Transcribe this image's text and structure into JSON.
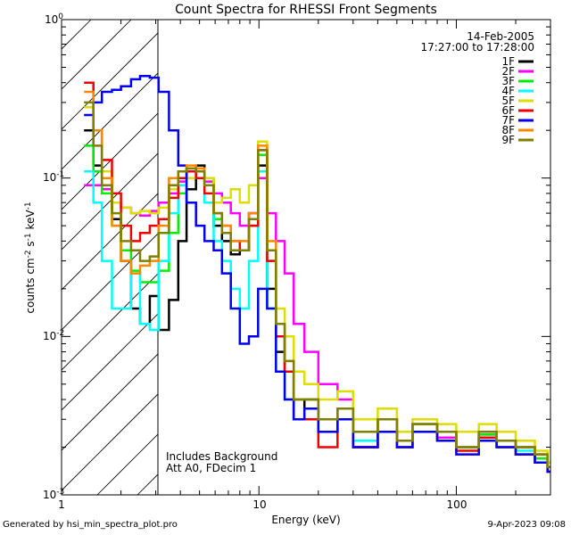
{
  "chart_data": {
    "type": "line",
    "title": "Count Spectra for RHESSI Front Segments",
    "xlabel": "Energy (keV)",
    "ylabel": "counts cm-2 s-1 keV-1",
    "xscale": "log",
    "yscale": "log",
    "xlim": [
      1,
      300
    ],
    "ylim": [
      0.001,
      1
    ],
    "x_tick_labels": [
      "1",
      "10",
      "100"
    ],
    "y_tick_labels": [
      "10-3",
      "10-2",
      "10-1",
      "100"
    ],
    "shaded_region_below_keV": 3,
    "info": {
      "date": "14-Feb-2005",
      "time_range": "17:27:00 to 17:28:00"
    },
    "annotations": [
      "Includes Background",
      "Att A0, FDecim 1"
    ],
    "footer_left": "Generated by hsi_min_spectra_plot.pro",
    "footer_right": "9-Apr-2023 09:08",
    "series": [
      {
        "name": "1F",
        "color": "#000000",
        "x": [
          1.3,
          1.45,
          1.6,
          1.8,
          2.0,
          2.25,
          2.5,
          2.8,
          3.1,
          3.5,
          3.9,
          4.3,
          4.8,
          5.3,
          5.9,
          6.5,
          7.2,
          8.0,
          8.9,
          9.9,
          11,
          12.2,
          13.5,
          15,
          17,
          20,
          25,
          30,
          40,
          50,
          60,
          80,
          100,
          130,
          160,
          200,
          250,
          290
        ],
        "values": [
          0.2,
          0.12,
          0.1,
          0.055,
          0.03,
          0.015,
          0.012,
          0.018,
          0.011,
          0.017,
          0.04,
          0.085,
          0.12,
          0.09,
          0.05,
          0.04,
          0.033,
          0.035,
          0.06,
          0.12,
          0.02,
          0.008,
          0.006,
          0.003,
          0.004,
          0.0025,
          0.0035,
          0.002,
          0.003,
          0.0022,
          0.0028,
          0.0025,
          0.002,
          0.0025,
          0.0022,
          0.002,
          0.0018,
          0.0015
        ]
      },
      {
        "name": "2F",
        "color": "#ff00ff",
        "x": [
          1.3,
          1.45,
          1.6,
          1.8,
          2.0,
          2.25,
          2.5,
          2.8,
          3.1,
          3.5,
          3.9,
          4.3,
          4.8,
          5.3,
          5.9,
          6.5,
          7.2,
          8.0,
          8.9,
          9.9,
          11,
          12.2,
          13.5,
          15,
          17,
          20,
          25,
          30,
          40,
          50,
          60,
          80,
          100,
          130,
          160,
          200,
          250,
          290
        ],
        "values": [
          0.09,
          0.09,
          0.085,
          0.07,
          0.065,
          0.06,
          0.058,
          0.062,
          0.07,
          0.08,
          0.095,
          0.1,
          0.11,
          0.095,
          0.08,
          0.07,
          0.06,
          0.05,
          0.06,
          0.1,
          0.06,
          0.04,
          0.025,
          0.012,
          0.008,
          0.005,
          0.004,
          0.0025,
          0.003,
          0.002,
          0.0025,
          0.0023,
          0.002,
          0.0024,
          0.0022,
          0.002,
          0.0017,
          0.0015
        ]
      },
      {
        "name": "3F",
        "color": "#00ee00",
        "x": [
          1.3,
          1.45,
          1.6,
          1.8,
          2.0,
          2.25,
          2.5,
          2.8,
          3.1,
          3.5,
          3.9,
          4.3,
          4.8,
          5.3,
          5.9,
          6.5,
          7.2,
          8.0,
          8.9,
          9.9,
          11,
          12.2,
          13.5,
          15,
          17,
          20,
          25,
          30,
          40,
          50,
          60,
          80,
          100,
          130,
          160,
          200,
          250,
          290
        ],
        "values": [
          0.16,
          0.11,
          0.08,
          0.05,
          0.035,
          0.026,
          0.022,
          0.022,
          0.026,
          0.045,
          0.08,
          0.1,
          0.11,
          0.1,
          0.055,
          0.045,
          0.035,
          0.035,
          0.05,
          0.14,
          0.03,
          0.01,
          0.006,
          0.004,
          0.004,
          0.003,
          0.0035,
          0.0025,
          0.003,
          0.0022,
          0.0028,
          0.0025,
          0.002,
          0.0024,
          0.0022,
          0.002,
          0.0017,
          0.0015
        ]
      },
      {
        "name": "4F",
        "color": "#00ffff",
        "x": [
          1.3,
          1.45,
          1.6,
          1.8,
          2.0,
          2.25,
          2.5,
          2.8,
          3.1,
          3.5,
          3.9,
          4.3,
          4.8,
          5.3,
          5.9,
          6.5,
          7.2,
          8.0,
          8.9,
          9.9,
          11,
          12.2,
          13.5,
          15,
          17,
          20,
          25,
          30,
          40,
          50,
          60,
          80,
          100,
          130,
          160,
          200,
          250,
          290
        ],
        "values": [
          0.11,
          0.07,
          0.03,
          0.015,
          0.015,
          0.025,
          0.012,
          0.011,
          0.03,
          0.06,
          0.09,
          0.11,
          0.1,
          0.07,
          0.04,
          0.03,
          0.02,
          0.015,
          0.03,
          0.11,
          0.015,
          0.006,
          0.004,
          0.003,
          0.0035,
          0.0025,
          0.003,
          0.0022,
          0.0025,
          0.002,
          0.0025,
          0.0022,
          0.002,
          0.0023,
          0.002,
          0.0019,
          0.0016,
          0.0014
        ]
      },
      {
        "name": "5F",
        "color": "#dddd00",
        "x": [
          1.3,
          1.45,
          1.6,
          1.8,
          2.0,
          2.25,
          2.5,
          2.8,
          3.1,
          3.5,
          3.9,
          4.3,
          4.8,
          5.3,
          5.9,
          6.5,
          7.2,
          8.0,
          8.9,
          9.9,
          11,
          12.2,
          13.5,
          15,
          17,
          20,
          25,
          30,
          40,
          50,
          60,
          80,
          100,
          130,
          160,
          200,
          250,
          290
        ],
        "values": [
          0.28,
          0.2,
          0.11,
          0.07,
          0.065,
          0.06,
          0.062,
          0.06,
          0.065,
          0.085,
          0.11,
          0.1,
          0.115,
          0.1,
          0.07,
          0.075,
          0.085,
          0.07,
          0.09,
          0.17,
          0.04,
          0.015,
          0.01,
          0.006,
          0.005,
          0.004,
          0.0045,
          0.003,
          0.0035,
          0.0025,
          0.003,
          0.0028,
          0.0025,
          0.0028,
          0.0025,
          0.0022,
          0.0019,
          0.0016
        ]
      },
      {
        "name": "6F",
        "color": "#ee0000",
        "x": [
          1.3,
          1.45,
          1.6,
          1.8,
          2.0,
          2.25,
          2.5,
          2.8,
          3.1,
          3.5,
          3.9,
          4.3,
          4.8,
          5.3,
          5.9,
          6.5,
          7.2,
          8.0,
          8.9,
          9.9,
          11,
          12.2,
          13.5,
          15,
          17,
          20,
          25,
          30,
          40,
          50,
          60,
          80,
          100,
          130,
          160,
          200,
          250,
          290
        ],
        "values": [
          0.4,
          0.2,
          0.13,
          0.08,
          0.05,
          0.04,
          0.045,
          0.05,
          0.055,
          0.075,
          0.1,
          0.11,
          0.1,
          0.08,
          0.06,
          0.05,
          0.04,
          0.035,
          0.05,
          0.15,
          0.03,
          0.01,
          0.006,
          0.003,
          0.003,
          0.002,
          0.003,
          0.002,
          0.0025,
          0.002,
          0.0025,
          0.0022,
          0.0019,
          0.0023,
          0.002,
          0.0018,
          0.0016,
          0.0014
        ]
      },
      {
        "name": "7F",
        "color": "#0000ee",
        "x": [
          1.3,
          1.45,
          1.6,
          1.8,
          2.0,
          2.25,
          2.5,
          2.8,
          3.1,
          3.5,
          3.9,
          4.3,
          4.8,
          5.3,
          5.9,
          6.5,
          7.2,
          8.0,
          8.9,
          9.9,
          11,
          12.2,
          13.5,
          15,
          17,
          20,
          25,
          30,
          40,
          50,
          60,
          80,
          100,
          130,
          160,
          200,
          250,
          290
        ],
        "values": [
          0.25,
          0.3,
          0.35,
          0.36,
          0.38,
          0.42,
          0.44,
          0.43,
          0.35,
          0.2,
          0.12,
          0.07,
          0.05,
          0.04,
          0.035,
          0.025,
          0.015,
          0.009,
          0.01,
          0.02,
          0.015,
          0.006,
          0.004,
          0.003,
          0.0035,
          0.0025,
          0.003,
          0.002,
          0.0025,
          0.002,
          0.0025,
          0.0022,
          0.0018,
          0.0022,
          0.002,
          0.0018,
          0.0016,
          0.0014
        ]
      },
      {
        "name": "8F",
        "color": "#ff8800",
        "x": [
          1.3,
          1.45,
          1.6,
          1.8,
          2.0,
          2.25,
          2.5,
          2.8,
          3.1,
          3.5,
          3.9,
          4.3,
          4.8,
          5.3,
          5.9,
          6.5,
          7.2,
          8.0,
          8.9,
          9.9,
          11,
          12.2,
          13.5,
          15,
          17,
          20,
          25,
          30,
          40,
          50,
          60,
          80,
          100,
          130,
          160,
          200,
          250,
          290
        ],
        "values": [
          0.35,
          0.2,
          0.1,
          0.05,
          0.03,
          0.025,
          0.028,
          0.03,
          0.05,
          0.1,
          0.11,
          0.12,
          0.115,
          0.09,
          0.06,
          0.05,
          0.04,
          0.04,
          0.06,
          0.16,
          0.04,
          0.012,
          0.007,
          0.004,
          0.004,
          0.003,
          0.0035,
          0.0025,
          0.003,
          0.0022,
          0.0028,
          0.0025,
          0.002,
          0.0025,
          0.0022,
          0.002,
          0.0018,
          0.0015
        ]
      },
      {
        "name": "9F",
        "color": "#808000",
        "x": [
          1.3,
          1.45,
          1.6,
          1.8,
          2.0,
          2.25,
          2.5,
          2.8,
          3.1,
          3.5,
          3.9,
          4.3,
          4.8,
          5.3,
          5.9,
          6.5,
          7.2,
          8.0,
          8.9,
          9.9,
          11,
          12.2,
          13.5,
          15,
          17,
          20,
          25,
          30,
          40,
          50,
          60,
          80,
          100,
          130,
          160,
          200,
          250,
          290
        ],
        "values": [
          0.3,
          0.16,
          0.09,
          0.06,
          0.04,
          0.035,
          0.03,
          0.032,
          0.045,
          0.09,
          0.11,
          0.115,
          0.11,
          0.09,
          0.06,
          0.045,
          0.035,
          0.035,
          0.055,
          0.15,
          0.035,
          0.012,
          0.007,
          0.004,
          0.004,
          0.003,
          0.0035,
          0.0025,
          0.003,
          0.0022,
          0.0028,
          0.0025,
          0.002,
          0.0025,
          0.0022,
          0.002,
          0.0018,
          0.0015
        ]
      }
    ]
  }
}
